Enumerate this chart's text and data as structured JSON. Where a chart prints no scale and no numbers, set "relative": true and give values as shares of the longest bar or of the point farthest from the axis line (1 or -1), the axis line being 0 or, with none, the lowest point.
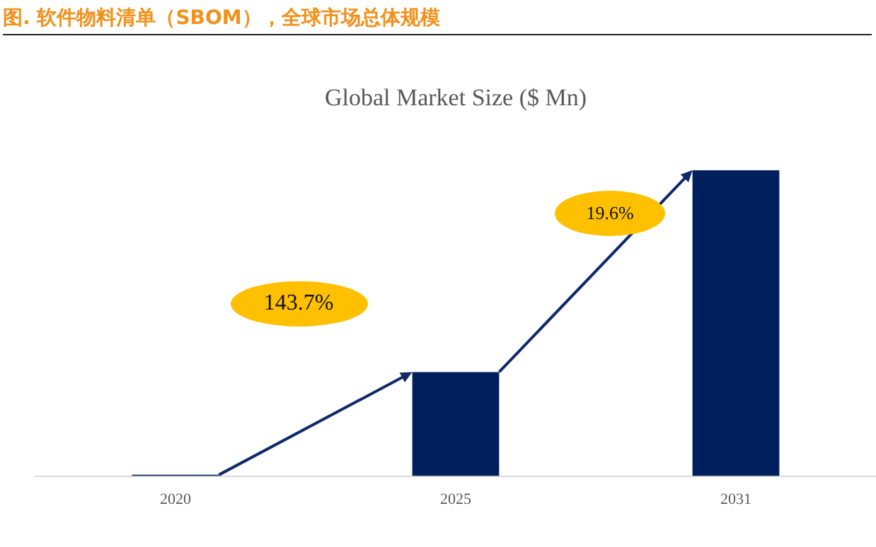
{
  "chart_data": {
    "type": "bar",
    "title": "Global Market Size ($ Mn)",
    "subtitle": "图.  软件物料清单（SBOM），全球市场总体规模",
    "categories": [
      "2020",
      "2025",
      "2031"
    ],
    "values": [
      0.004,
      0.34,
      1
    ],
    "color": "#001f5c",
    "relative": true,
    "grid": false,
    "legend": false,
    "annotations": [
      "143.7%",
      "19.6%"
    ]
  }
}
